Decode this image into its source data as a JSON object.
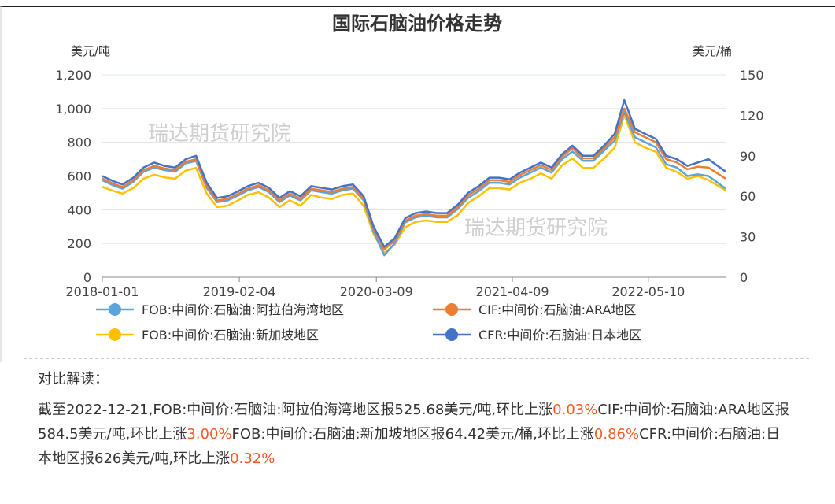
{
  "chart_data": {
    "type": "line",
    "title": "国际石脑油价格走势",
    "y_label": "美元/吨",
    "y2_label": "美元/桶",
    "watermarks": [
      "瑞达期货研究院",
      "瑞达期货研究院"
    ],
    "x": [
      "2018-01-01",
      "2018-02-01",
      "2018-03-01",
      "2018-04-01",
      "2018-05-01",
      "2018-06-01",
      "2018-07-01",
      "2018-08-01",
      "2018-09-01",
      "2018-10-01",
      "2018-11-01",
      "2018-12-01",
      "2019-01-01",
      "2019-02-01",
      "2019-03-01",
      "2019-04-01",
      "2019-05-01",
      "2019-06-01",
      "2019-07-01",
      "2019-08-01",
      "2019-09-01",
      "2019-10-01",
      "2019-11-01",
      "2019-12-01",
      "2020-01-01",
      "2020-02-01",
      "2020-03-01",
      "2020-04-01",
      "2020-05-01",
      "2020-06-01",
      "2020-07-01",
      "2020-08-01",
      "2020-09-01",
      "2020-10-01",
      "2020-11-01",
      "2020-12-01",
      "2021-01-01",
      "2021-02-01",
      "2021-03-01",
      "2021-04-01",
      "2021-05-01",
      "2021-06-01",
      "2021-07-01",
      "2021-08-01",
      "2021-09-01",
      "2021-10-01",
      "2021-11-01",
      "2021-12-01",
      "2022-01-01",
      "2022-02-01",
      "2022-03-01",
      "2022-04-01",
      "2022-05-01",
      "2022-06-01",
      "2022-07-01",
      "2022-08-01",
      "2022-09-01",
      "2022-10-01",
      "2022-11-01",
      "2022-12-21"
    ],
    "xlim": [
      "2018-01-01",
      "2022-12-21"
    ],
    "xticks": [
      "2018-01-01",
      "2019-02-04",
      "2020-03-09",
      "2021-04-09",
      "2022-05-10"
    ],
    "ylim": [
      0,
      1200
    ],
    "yticks": [
      0,
      200,
      400,
      600,
      800,
      {
        "value": 1000,
        "label": "1,000"
      },
      {
        "value": 1200,
        "label": "1,200"
      }
    ],
    "y2lim": [
      0,
      150
    ],
    "y2ticks": [
      0,
      30,
      60,
      90,
      120,
      150
    ],
    "grid": true,
    "series": [
      {
        "name": "FOB:中间价:石脑油:阿拉伯海湾地区",
        "color": "#5ba3dc",
        "values": [
          575,
          545,
          525,
          565,
          625,
          650,
          635,
          625,
          675,
          690,
          530,
          445,
          455,
          485,
          515,
          535,
          505,
          445,
          485,
          455,
          515,
          505,
          495,
          515,
          525,
          455,
          270,
          130,
          200,
          325,
          355,
          365,
          355,
          355,
          405,
          470,
          510,
          560,
          560,
          550,
          590,
          620,
          650,
          620,
          700,
          745,
          690,
          690,
          750,
          810,
          980,
          830,
          800,
          770,
          670,
          650,
          600,
          610,
          600,
          525.68
        ]
      },
      {
        "name": "CIF:中间价:石脑油:ARA地区",
        "color": "#ed7d31",
        "values": [
          585,
          555,
          535,
          575,
          635,
          660,
          645,
          635,
          685,
          700,
          540,
          455,
          465,
          495,
          525,
          545,
          515,
          455,
          495,
          465,
          525,
          515,
          505,
          525,
          535,
          465,
          285,
          165,
          215,
          335,
          365,
          375,
          365,
          365,
          415,
          485,
          525,
          575,
          575,
          565,
          605,
          635,
          665,
          635,
          715,
          765,
          705,
          705,
          765,
          830,
          1000,
          860,
          830,
          800,
          700,
          680,
          640,
          655,
          650,
          584.5
        ]
      },
      {
        "name": "FOB:中间价:石脑油:新加坡地区",
        "color": "#ffc000",
        "axis": "y2",
        "values": [
          67,
          64,
          62,
          66,
          73,
          76,
          74,
          73,
          79,
          81,
          62,
          52,
          53,
          57,
          61,
          63,
          59,
          52,
          57,
          53,
          61,
          59,
          58,
          61,
          62,
          53,
          32,
          18,
          24,
          37,
          41,
          42,
          41,
          41,
          46,
          55,
          60,
          66,
          66,
          65,
          70,
          73,
          77,
          73,
          83,
          88,
          81,
          81,
          88,
          96,
          120,
          100,
          96,
          93,
          81,
          78,
          73,
          75,
          72,
          64.42
        ]
      },
      {
        "name": "CFR:中间价:石脑油:日本地区",
        "color": "#4472c4",
        "values": [
          600,
          570,
          550,
          590,
          650,
          680,
          660,
          650,
          700,
          720,
          560,
          470,
          480,
          510,
          540,
          560,
          530,
          470,
          510,
          480,
          540,
          530,
          520,
          540,
          550,
          480,
          300,
          180,
          230,
          350,
          380,
          390,
          380,
          380,
          430,
          500,
          540,
          590,
          590,
          580,
          620,
          650,
          680,
          650,
          730,
          780,
          720,
          720,
          780,
          850,
          1050,
          880,
          850,
          820,
          720,
          700,
          660,
          680,
          700,
          626
        ]
      }
    ]
  },
  "commentary": {
    "heading": "对比解读：",
    "segments": [
      {
        "text": "截至2022-12-21,FOB:中间价:石脑油:阿拉伯海湾地区报525.68美元/吨,环比上涨"
      },
      {
        "text": "0.03%",
        "color": "#f15a24"
      },
      {
        "text": "CIF:中间价:石脑油:ARA地区报584.5美元/吨,环比上涨"
      },
      {
        "text": "3.00%",
        "color": "#f15a24"
      },
      {
        "text": "FOB:中间价:石脑油:新加坡地区报64.42美元/桶,环比上涨"
      },
      {
        "text": "0.86%",
        "color": "#f15a24"
      },
      {
        "text": "CFR:中间价:石脑油:日本地区报626美元/吨,环比上涨"
      },
      {
        "text": "0.32%",
        "color": "#f15a24"
      }
    ]
  }
}
